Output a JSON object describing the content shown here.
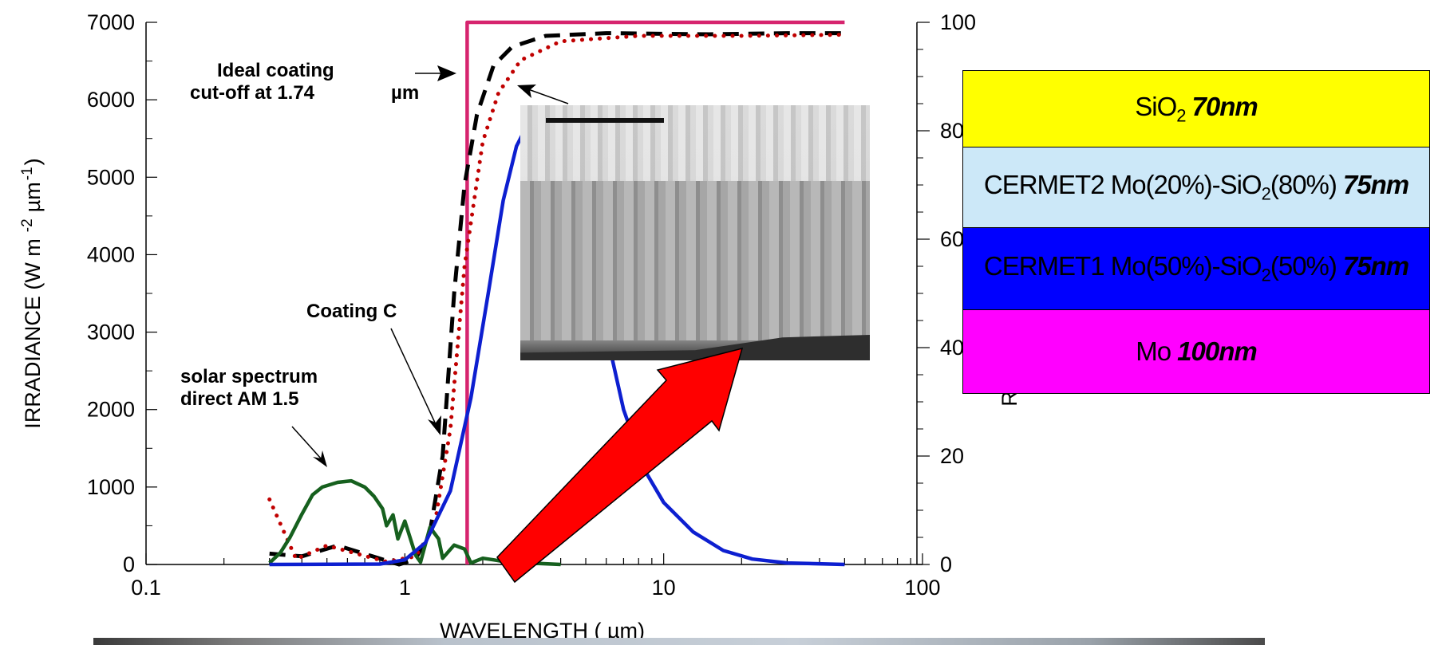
{
  "chart_data": {
    "type": "line",
    "title": "",
    "xlabel": "WAVELENGTH (   µm)",
    "ylabel_left": "IRRADIANCE (W m",
    "ylabel_left_sup1": "-2",
    "ylabel_left_mid": "µm",
    "ylabel_left_sup2": "-1",
    "ylabel_left_end": ")",
    "ylabel_right": "R",
    "x_scale": "log",
    "xlim": [
      0.1,
      100
    ],
    "ylim_left": [
      0,
      7000
    ],
    "ylim_right": [
      0,
      100
    ],
    "x_ticks": [
      "0.1",
      "1",
      "10",
      "100"
    ],
    "y_ticks_left": [
      "0",
      "1000",
      "2000",
      "3000",
      "4000",
      "5000",
      "6000",
      "7000"
    ],
    "y_ticks_right": [
      "0",
      "20",
      "40",
      "60",
      "80",
      "100"
    ],
    "series": [
      {
        "color": "#d6246e",
        "style": "solid",
        "axis": "right",
        "points": [
          [
            1.74,
            0
          ],
          [
            1.74,
            100
          ],
          [
            50,
            100
          ]
        ]
      },
      {
        "color": "#000000",
        "style": "dashed",
        "axis": "right",
        "points": [
          [
            0.3,
            2
          ],
          [
            0.4,
            1.5
          ],
          [
            0.55,
            3.5
          ],
          [
            0.75,
            1.5
          ],
          [
            0.95,
            0
          ],
          [
            1.1,
            1
          ],
          [
            1.25,
            6
          ],
          [
            1.4,
            20
          ],
          [
            1.55,
            50
          ],
          [
            1.7,
            70
          ],
          [
            1.9,
            83
          ],
          [
            2.2,
            92
          ],
          [
            2.6,
            95.5
          ],
          [
            3.5,
            97.5
          ],
          [
            6,
            98
          ],
          [
            15,
            97.8
          ],
          [
            30,
            98
          ],
          [
            50,
            98
          ]
        ]
      },
      {
        "color": "#c00000",
        "style": "dotted",
        "axis": "right",
        "points": [
          [
            0.3,
            12
          ],
          [
            0.38,
            1
          ],
          [
            0.5,
            3.5
          ],
          [
            0.65,
            2
          ],
          [
            0.85,
            0.5
          ],
          [
            1.1,
            1.5
          ],
          [
            1.3,
            7
          ],
          [
            1.5,
            25
          ],
          [
            1.7,
            55
          ],
          [
            1.85,
            67
          ],
          [
            2,
            78
          ],
          [
            2.3,
            87
          ],
          [
            2.8,
            93
          ],
          [
            4,
            96.5
          ],
          [
            8,
            97.5
          ],
          [
            20,
            97.5
          ],
          [
            50,
            97.7
          ]
        ]
      },
      {
        "color": "#0d1fd0",
        "style": "solid",
        "axis": "left",
        "points": [
          [
            0.3,
            0
          ],
          [
            0.8,
            5
          ],
          [
            1.0,
            60
          ],
          [
            1.2,
            280
          ],
          [
            1.5,
            950
          ],
          [
            1.8,
            2150
          ],
          [
            2.1,
            3500
          ],
          [
            2.4,
            4700
          ],
          [
            2.7,
            5400
          ],
          [
            3.0,
            5700
          ],
          [
            3.5,
            5400
          ],
          [
            4.3,
            4600
          ],
          [
            5.2,
            3700
          ],
          [
            6.0,
            3000
          ],
          [
            7.0,
            2000
          ],
          [
            8.5,
            1200
          ],
          [
            10,
            800
          ],
          [
            13,
            420
          ],
          [
            17,
            180
          ],
          [
            22,
            70
          ],
          [
            30,
            20
          ],
          [
            50,
            0
          ]
        ]
      },
      {
        "color": "#16601e",
        "style": "solid",
        "axis": "left",
        "points": [
          [
            0.3,
            20
          ],
          [
            0.33,
            150
          ],
          [
            0.36,
            350
          ],
          [
            0.4,
            650
          ],
          [
            0.44,
            900
          ],
          [
            0.48,
            1000
          ],
          [
            0.55,
            1060
          ],
          [
            0.62,
            1080
          ],
          [
            0.7,
            1000
          ],
          [
            0.76,
            880
          ],
          [
            0.82,
            720
          ],
          [
            0.85,
            500
          ],
          [
            0.9,
            640
          ],
          [
            0.94,
            330
          ],
          [
            1.0,
            560
          ],
          [
            1.1,
            120
          ],
          [
            1.15,
            30
          ],
          [
            1.25,
            480
          ],
          [
            1.35,
            330
          ],
          [
            1.4,
            80
          ],
          [
            1.55,
            250
          ],
          [
            1.7,
            200
          ],
          [
            1.8,
            20
          ],
          [
            2.0,
            80
          ],
          [
            2.2,
            60
          ],
          [
            2.5,
            30
          ],
          [
            3.0,
            20
          ],
          [
            4.0,
            0
          ]
        ]
      }
    ],
    "annotations": {
      "ideal_line1": "Ideal coating",
      "ideal_line2": "cut-off at 1.74",
      "ideal_unit": "µm",
      "coating": "Coating C",
      "solar_line1": "solar spectrum",
      "solar_line2": "direct AM 1.5"
    }
  },
  "layers": [
    {
      "text": "SiO",
      "sub": "2",
      "after": "",
      "thickness": "70nm",
      "color": "#ffff00"
    },
    {
      "text": "CERMET2 Mo(20%)-SiO",
      "sub": "2",
      "after": "(80%)",
      "thickness": "75nm",
      "color": "#cce8f8"
    },
    {
      "text": "CERMET1 Mo(50%)-SiO",
      "sub": "2",
      "after": "(50%)",
      "thickness": "75nm",
      "color": "#0000ff"
    },
    {
      "text": "Mo",
      "sub": "",
      "after": "",
      "thickness": "100nm",
      "color": "#ff00ff"
    }
  ],
  "colors": {
    "arrow": "#ff0000"
  }
}
